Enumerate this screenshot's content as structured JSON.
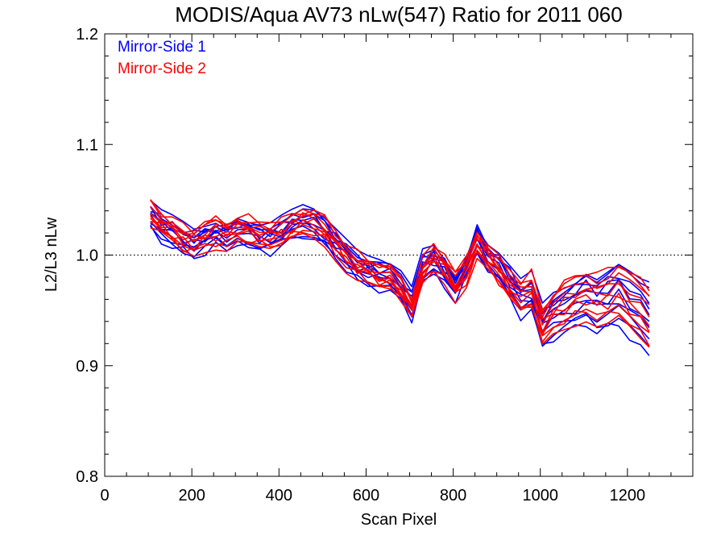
{
  "chart_data": {
    "type": "line",
    "title": "MODIS/Aqua AV73 nLw(547) Ratio for 2011 060",
    "xlabel": "Scan Pixel",
    "ylabel": "L2/L3 nLw",
    "xlim": [
      0,
      1350
    ],
    "ylim": [
      0.8,
      1.2
    ],
    "x_ticks": [
      0,
      200,
      400,
      600,
      800,
      1000,
      1200
    ],
    "x_tick_labels": [
      "0",
      "200",
      "400",
      "600",
      "800",
      "1000",
      "1200"
    ],
    "y_ticks": [
      0.8,
      0.9,
      1.0,
      1.1,
      1.2
    ],
    "y_tick_labels": [
      "0.8",
      "0.9",
      "1.0",
      "1.1",
      "1.2"
    ],
    "reference_line": {
      "y": 1.0,
      "style": "dotted"
    },
    "legend": {
      "placement": "top-left"
    },
    "colors": {
      "mirror_side_1": "#0000ff",
      "mirror_side_2": "#ff0000"
    },
    "x": [
      105,
      130,
      155,
      180,
      205,
      230,
      255,
      280,
      305,
      330,
      355,
      380,
      405,
      430,
      455,
      480,
      505,
      530,
      555,
      580,
      605,
      630,
      655,
      680,
      705,
      730,
      755,
      780,
      805,
      830,
      855,
      880,
      905,
      930,
      955,
      980,
      1005,
      1030,
      1055,
      1080,
      1105,
      1130,
      1155,
      1180,
      1205,
      1230,
      1250
    ],
    "series": [
      {
        "name": "Mirror-Side 1",
        "color": "#0000ff",
        "base": [
          1.035,
          1.025,
          1.02,
          1.015,
          1.01,
          1.015,
          1.02,
          1.015,
          1.025,
          1.02,
          1.015,
          1.015,
          1.02,
          1.025,
          1.03,
          1.028,
          1.02,
          1.01,
          1.0,
          0.99,
          0.985,
          0.982,
          0.978,
          0.97,
          0.955,
          0.99,
          0.995,
          0.985,
          0.97,
          0.99,
          1.015,
          1.0,
          0.99,
          0.975,
          0.96,
          0.965,
          0.935,
          0.945,
          0.95,
          0.955,
          0.962,
          0.955,
          0.96,
          0.965,
          0.955,
          0.945,
          0.94
        ],
        "offsets": [
          0.0,
          0.008,
          -0.006,
          0.012,
          -0.012,
          0.004,
          -0.002,
          0.01,
          -0.009,
          0.006
        ]
      },
      {
        "name": "Mirror-Side 2",
        "color": "#ff0000",
        "base": [
          1.037,
          1.028,
          1.022,
          1.015,
          1.012,
          1.017,
          1.02,
          1.018,
          1.025,
          1.022,
          1.018,
          1.016,
          1.02,
          1.025,
          1.03,
          1.028,
          1.022,
          1.01,
          0.998,
          0.99,
          0.986,
          0.98,
          0.976,
          0.97,
          0.952,
          0.985,
          0.998,
          0.988,
          0.972,
          0.985,
          1.01,
          0.998,
          0.985,
          0.972,
          0.962,
          0.968,
          0.935,
          0.948,
          0.955,
          0.96,
          0.965,
          0.96,
          0.962,
          0.968,
          0.958,
          0.948,
          0.942
        ],
        "offsets": [
          0.002,
          -0.008,
          0.007,
          -0.011,
          0.011,
          -0.003,
          0.004,
          -0.006,
          0.009,
          -0.001
        ]
      }
    ]
  }
}
